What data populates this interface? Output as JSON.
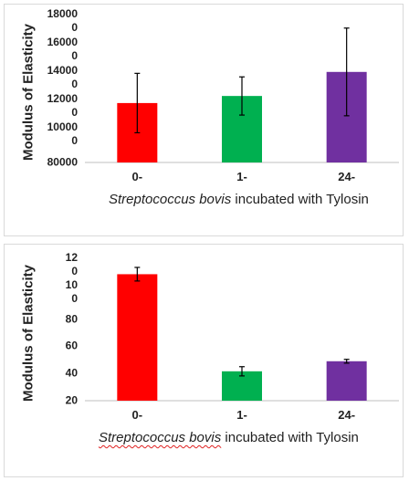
{
  "chart_data": [
    {
      "type": "bar",
      "y_label": "Modulus of Elasticity",
      "x_label_italic": "Streptococcus bovis",
      "x_label_rest": "incubated with Tylosin",
      "categories": [
        "0-",
        "1-",
        "24-"
      ],
      "values": [
        122000,
        127000,
        144000
      ],
      "errors": [
        21000,
        13500,
        31000
      ],
      "colors": [
        "#ff0000",
        "#00b050",
        "#7030a0"
      ],
      "ylim": [
        80000,
        180000
      ],
      "yticks": [
        80000,
        100000,
        120000,
        140000,
        160000,
        180000
      ]
    },
    {
      "type": "bar",
      "y_label": "Modulus of Elasticity",
      "x_label_italic": "Streptococcus bovis",
      "x_label_rest": "incubated with Tylosin",
      "categories": [
        "0-",
        "1-",
        "24-"
      ],
      "values": [
        113,
        41.6,
        49
      ],
      "errors": [
        5,
        3.4,
        1.4
      ],
      "colors": [
        "#ff0000",
        "#00b050",
        "#7030a0"
      ],
      "ylim": [
        20,
        120
      ],
      "yticks": [
        20,
        40,
        60,
        80,
        100,
        120
      ]
    }
  ]
}
